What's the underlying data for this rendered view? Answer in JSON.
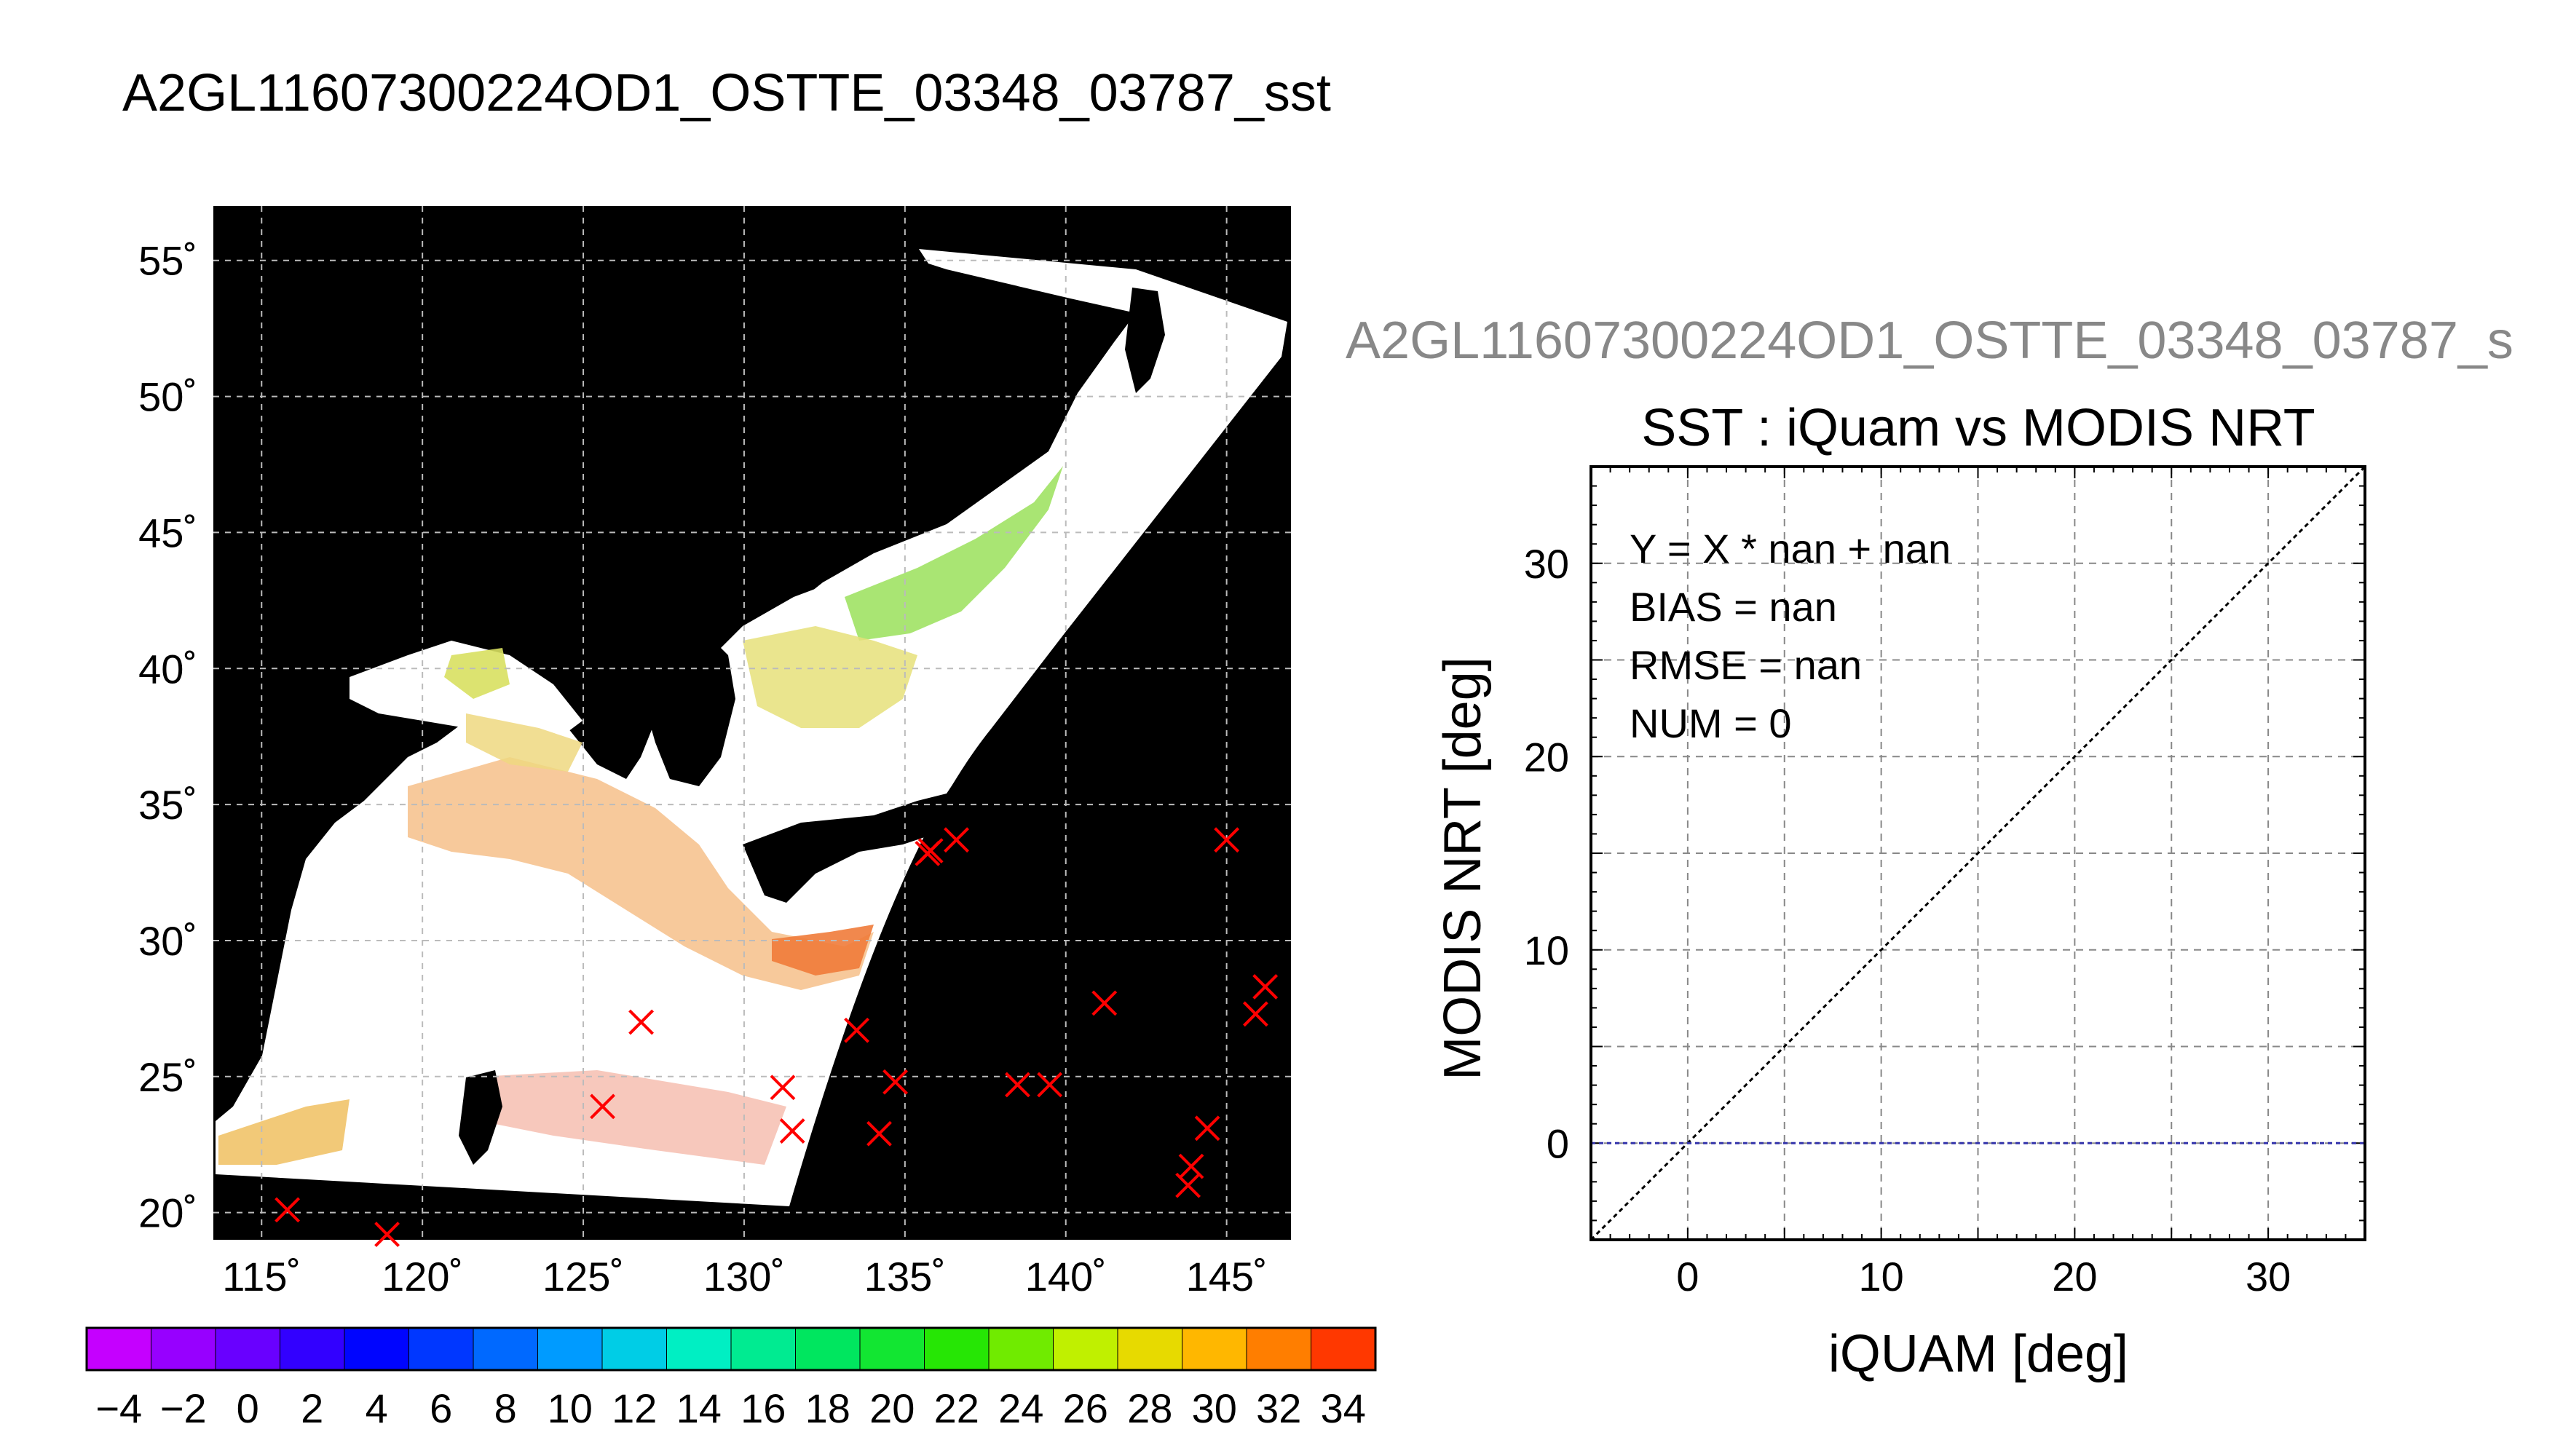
{
  "title": "A2GL11607300224OD1_OSTTE_03348_03787_sst",
  "chart_data": [
    {
      "type": "map",
      "lon_range": [
        113.5,
        147
      ],
      "lat_range": [
        19,
        57
      ],
      "lon_ticks": [
        115,
        120,
        125,
        130,
        135,
        140,
        145
      ],
      "lat_ticks": [
        20,
        25,
        30,
        35,
        40,
        45,
        50,
        55
      ],
      "lon_tick_labels": [
        "115˚",
        "120˚",
        "125˚",
        "130˚",
        "135˚",
        "140˚",
        "145˚"
      ],
      "lat_tick_labels": [
        "20˚",
        "25˚",
        "30˚",
        "35˚",
        "40˚",
        "45˚",
        "50˚",
        "55˚"
      ],
      "grid": true,
      "background_color": "#000000",
      "marker_color": "#ff0000",
      "markers": [
        [
          115.8,
          20.1
        ],
        [
          118.9,
          19.2
        ],
        [
          125.6,
          23.9
        ],
        [
          126.8,
          27.0
        ],
        [
          131.2,
          24.6
        ],
        [
          131.5,
          23.0
        ],
        [
          133.5,
          26.7
        ],
        [
          134.2,
          22.9
        ],
        [
          134.7,
          24.8
        ],
        [
          135.7,
          33.2
        ],
        [
          135.8,
          33.3
        ],
        [
          136.6,
          33.7
        ],
        [
          138.5,
          24.7
        ],
        [
          139.5,
          24.7
        ],
        [
          141.2,
          27.7
        ],
        [
          143.9,
          21.7
        ],
        [
          143.8,
          21.0
        ],
        [
          144.4,
          23.1
        ],
        [
          145.0,
          33.7
        ],
        [
          145.9,
          27.3
        ],
        [
          146.2,
          28.3
        ]
      ]
    },
    {
      "type": "colorbar",
      "min": -5,
      "max": 35,
      "step": 2,
      "tick_labels": [
        "−4",
        "−2",
        "0",
        "2",
        "4",
        "6",
        "8",
        "10",
        "12",
        "14",
        "16",
        "18",
        "20",
        "22",
        "24",
        "26",
        "28",
        "30",
        "32",
        "34"
      ],
      "tick_values": [
        -4,
        -2,
        0,
        2,
        4,
        6,
        8,
        10,
        12,
        14,
        16,
        18,
        20,
        22,
        24,
        26,
        28,
        30,
        32,
        34
      ]
    },
    {
      "type": "scatter",
      "supertitle": "A2GL11607300224OD1_OSTTE_03348_03787_s",
      "title": "SST : iQuam vs MODIS NRT",
      "xlabel": "iQUAM [deg]",
      "ylabel": "MODIS NRT [deg]",
      "xlim": [
        -5,
        35
      ],
      "ylim": [
        -5,
        35
      ],
      "xticks": [
        0,
        10,
        20,
        30
      ],
      "yticks": [
        0,
        10,
        20,
        30
      ],
      "grid": true,
      "points": [],
      "identity_line": true,
      "zero_line_color": "#3333aa",
      "stats": {
        "equation": "Y = X * nan + nan",
        "bias": "BIAS = nan",
        "rmse": "RMSE = nan",
        "num": "NUM = 0"
      }
    }
  ]
}
